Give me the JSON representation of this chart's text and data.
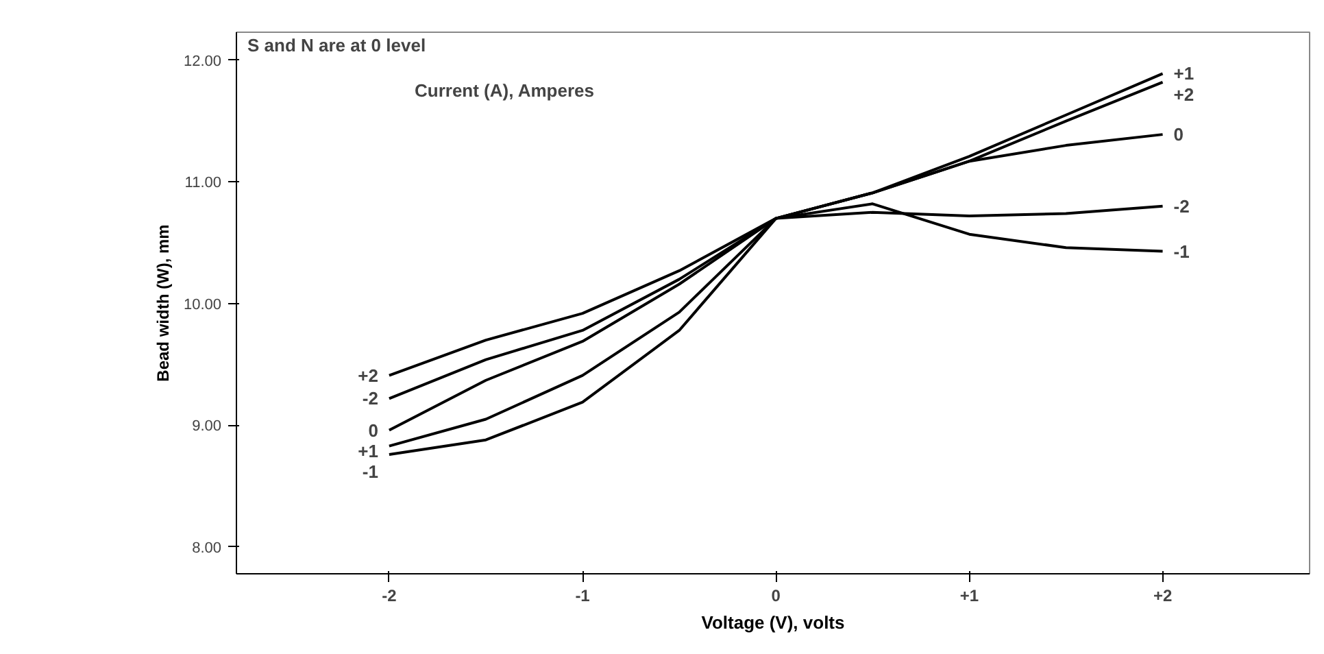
{
  "chart_data": {
    "type": "line",
    "xlabel": "Voltage (V), volts",
    "ylabel": "Bead width (W), mm",
    "legend_title": "Current (A), Amperes",
    "annotations": [
      "S and N are at 0 level"
    ],
    "x": [
      -2,
      -1.5,
      -1,
      -0.5,
      0,
      0.5,
      1,
      1.5,
      2
    ],
    "series": [
      {
        "name": "+2",
        "color": "#000000",
        "values": [
          9.41,
          9.7,
          9.92,
          10.27,
          10.7,
          10.91,
          11.17,
          11.5,
          11.82
        ]
      },
      {
        "name": "-2",
        "color": "#000000",
        "values": [
          9.22,
          9.54,
          9.78,
          10.2,
          10.7,
          10.75,
          10.72,
          10.74,
          10.8
        ]
      },
      {
        "name": "0",
        "color": "#000000",
        "values": [
          8.96,
          9.37,
          9.69,
          10.16,
          10.7,
          10.91,
          11.17,
          11.3,
          11.39
        ]
      },
      {
        "name": "+1",
        "color": "#000000",
        "values": [
          8.83,
          9.05,
          9.41,
          9.93,
          10.7,
          10.91,
          11.21,
          11.55,
          11.89
        ]
      },
      {
        "name": "-1",
        "color": "#000000",
        "values": [
          8.76,
          8.88,
          9.19,
          9.78,
          10.7,
          10.82,
          10.57,
          10.46,
          10.43
        ]
      }
    ],
    "xlim": [
      -2.79,
      2.76
    ],
    "ylim": [
      7.78,
      12.23
    ],
    "xticks": [
      {
        "value": -2,
        "label": "-2"
      },
      {
        "value": -1,
        "label": "-1"
      },
      0,
      {
        "value": 1,
        "label": "+1"
      },
      {
        "value": 2,
        "label": "+2"
      }
    ],
    "yticks": [
      {
        "value": 8,
        "label": "8.00"
      },
      {
        "value": 9,
        "label": "9.00"
      },
      {
        "value": 10,
        "label": "10.00"
      },
      {
        "value": 11,
        "label": "11.00"
      },
      {
        "value": 12,
        "label": "12.00"
      }
    ],
    "grid": false,
    "marker": "none",
    "line_style": "solid"
  }
}
